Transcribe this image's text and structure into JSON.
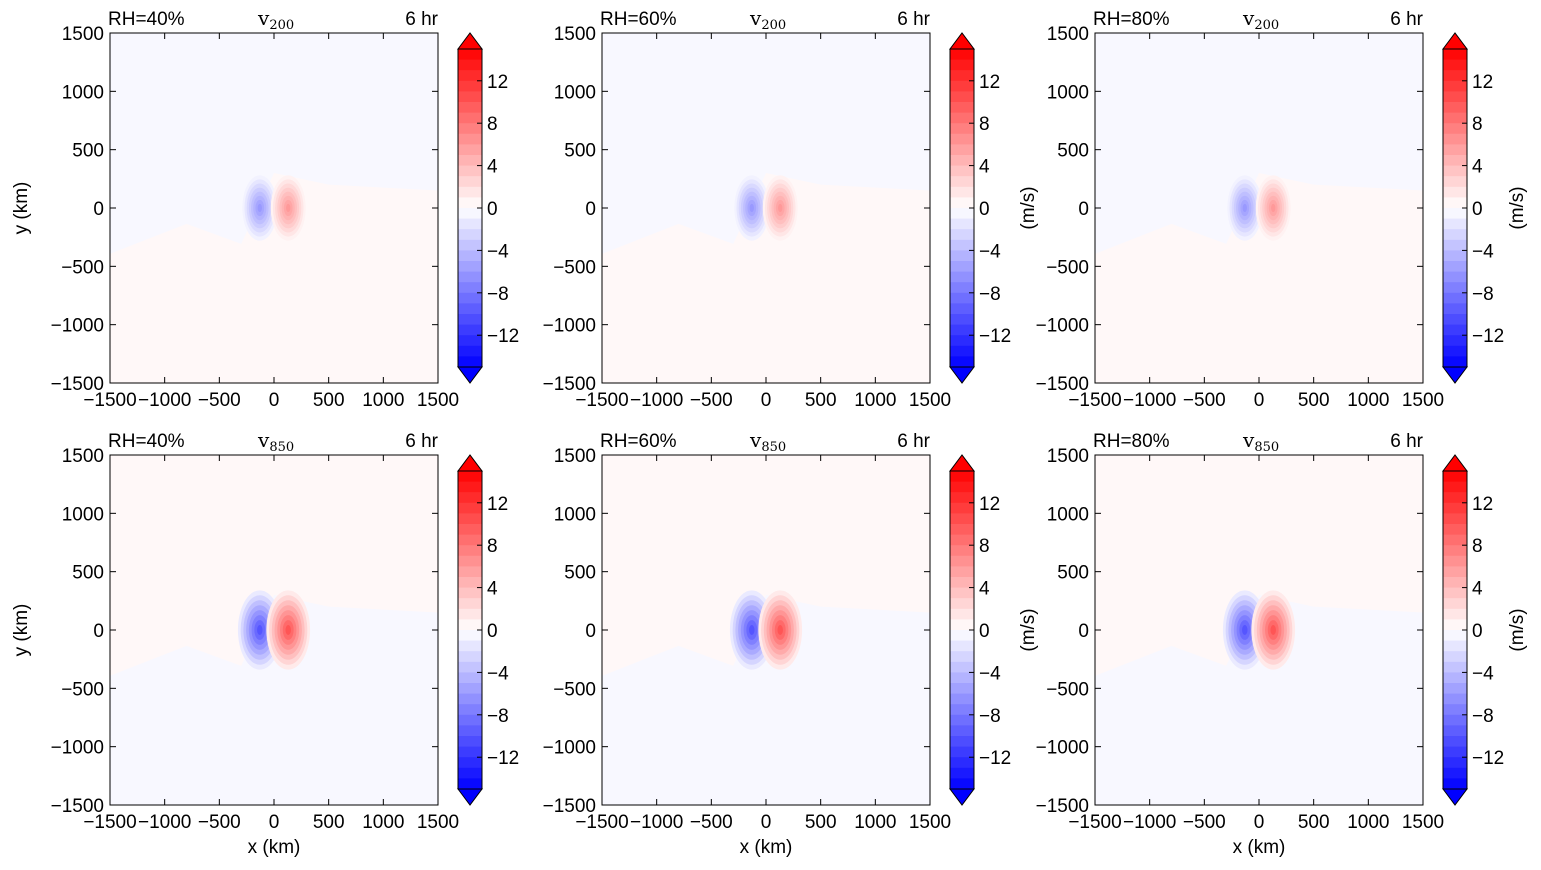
{
  "chart_data": [
    {
      "type": "heatmap",
      "variable": "v",
      "level": "200",
      "title_left": "RH=40%",
      "title_mid": "v",
      "title_mid_sub": "200",
      "title_right": "6 hr",
      "xlabel": "",
      "ylabel": "y (km)",
      "cbar_label": "",
      "xlim": [
        -1500,
        1500
      ],
      "ylim": [
        -1500,
        1500
      ],
      "background_value": {
        "north": -0.4,
        "south": 0.4
      },
      "dipole": {
        "neg_center": [
          -130,
          0
        ],
        "pos_center": [
          130,
          0
        ],
        "min": -6,
        "max": 6,
        "radius_x": 160,
        "radius_y": 280
      }
    },
    {
      "type": "heatmap",
      "variable": "v",
      "level": "200",
      "title_left": "RH=60%",
      "title_mid": "v",
      "title_mid_sub": "200",
      "title_right": "6 hr",
      "xlabel": "",
      "ylabel": "",
      "cbar_label": "(m/s)",
      "xlim": [
        -1500,
        1500
      ],
      "ylim": [
        -1500,
        1500
      ],
      "background_value": {
        "north": -0.4,
        "south": 0.4
      },
      "dipole": {
        "neg_center": [
          -130,
          0
        ],
        "pos_center": [
          130,
          0
        ],
        "min": -6,
        "max": 6,
        "radius_x": 160,
        "radius_y": 280
      }
    },
    {
      "type": "heatmap",
      "variable": "v",
      "level": "200",
      "title_left": "RH=80%",
      "title_mid": "v",
      "title_mid_sub": "200",
      "title_right": "6 hr",
      "xlabel": "",
      "ylabel": "",
      "cbar_label": "(m/s)",
      "xlim": [
        -1500,
        1500
      ],
      "ylim": [
        -1500,
        1500
      ],
      "background_value": {
        "north": -0.4,
        "south": 0.4
      },
      "dipole": {
        "neg_center": [
          -130,
          0
        ],
        "pos_center": [
          130,
          0
        ],
        "min": -6,
        "max": 6,
        "radius_x": 160,
        "radius_y": 280
      }
    },
    {
      "type": "heatmap",
      "variable": "v",
      "level": "850",
      "title_left": "RH=40%",
      "title_mid": "v",
      "title_mid_sub": "850",
      "title_right": "6 hr",
      "xlabel": "x (km)",
      "ylabel": "y (km)",
      "cbar_label": "",
      "xlim": [
        -1500,
        1500
      ],
      "ylim": [
        -1500,
        1500
      ],
      "background_value": {
        "north": 0.4,
        "south": -0.4
      },
      "dipole": {
        "neg_center": [
          -130,
          0
        ],
        "pos_center": [
          130,
          0
        ],
        "min": -10,
        "max": 10,
        "radius_x": 200,
        "radius_y": 340
      }
    },
    {
      "type": "heatmap",
      "variable": "v",
      "level": "850",
      "title_left": "RH=60%",
      "title_mid": "v",
      "title_mid_sub": "850",
      "title_right": "6 hr",
      "xlabel": "x (km)",
      "ylabel": "",
      "cbar_label": "(m/s)",
      "xlim": [
        -1500,
        1500
      ],
      "ylim": [
        -1500,
        1500
      ],
      "background_value": {
        "north": 0.4,
        "south": -0.4
      },
      "dipole": {
        "neg_center": [
          -130,
          0
        ],
        "pos_center": [
          130,
          0
        ],
        "min": -10,
        "max": 10,
        "radius_x": 200,
        "radius_y": 340
      }
    },
    {
      "type": "heatmap",
      "variable": "v",
      "level": "850",
      "title_left": "RH=80%",
      "title_mid": "v",
      "title_mid_sub": "850",
      "title_right": "6 hr",
      "xlabel": "x (km)",
      "ylabel": "",
      "cbar_label": "(m/s)",
      "xlim": [
        -1500,
        1500
      ],
      "ylim": [
        -1500,
        1500
      ],
      "background_value": {
        "north": 0.4,
        "south": -0.4
      },
      "dipole": {
        "neg_center": [
          -130,
          0
        ],
        "pos_center": [
          130,
          0
        ],
        "min": -10,
        "max": 10,
        "radius_x": 200,
        "radius_y": 340
      }
    }
  ],
  "axes": {
    "xticks": [
      -1500,
      -1000,
      -500,
      0,
      500,
      1000,
      1500
    ],
    "xtick_labels": [
      "−1500",
      "−1000",
      "−500",
      "0",
      "500",
      "1000",
      "1500"
    ],
    "yticks": [
      1500,
      1000,
      500,
      0,
      -500,
      -1000,
      -1500
    ],
    "ytick_labels": [
      "1500",
      "1000",
      "500",
      "0",
      "−500",
      "−1000",
      "−1500"
    ]
  },
  "colorbar": {
    "range": [
      -15,
      15
    ],
    "ticks": [
      12,
      8,
      4,
      0,
      -4,
      -8,
      -12
    ],
    "tick_labels": [
      "12",
      "8",
      "4",
      "0",
      "−4",
      "−8",
      "−12"
    ],
    "extend": "both",
    "colormap": "bwr",
    "color_low": "#0000ff",
    "color_mid": "#ffffff",
    "color_high": "#ff0000"
  }
}
